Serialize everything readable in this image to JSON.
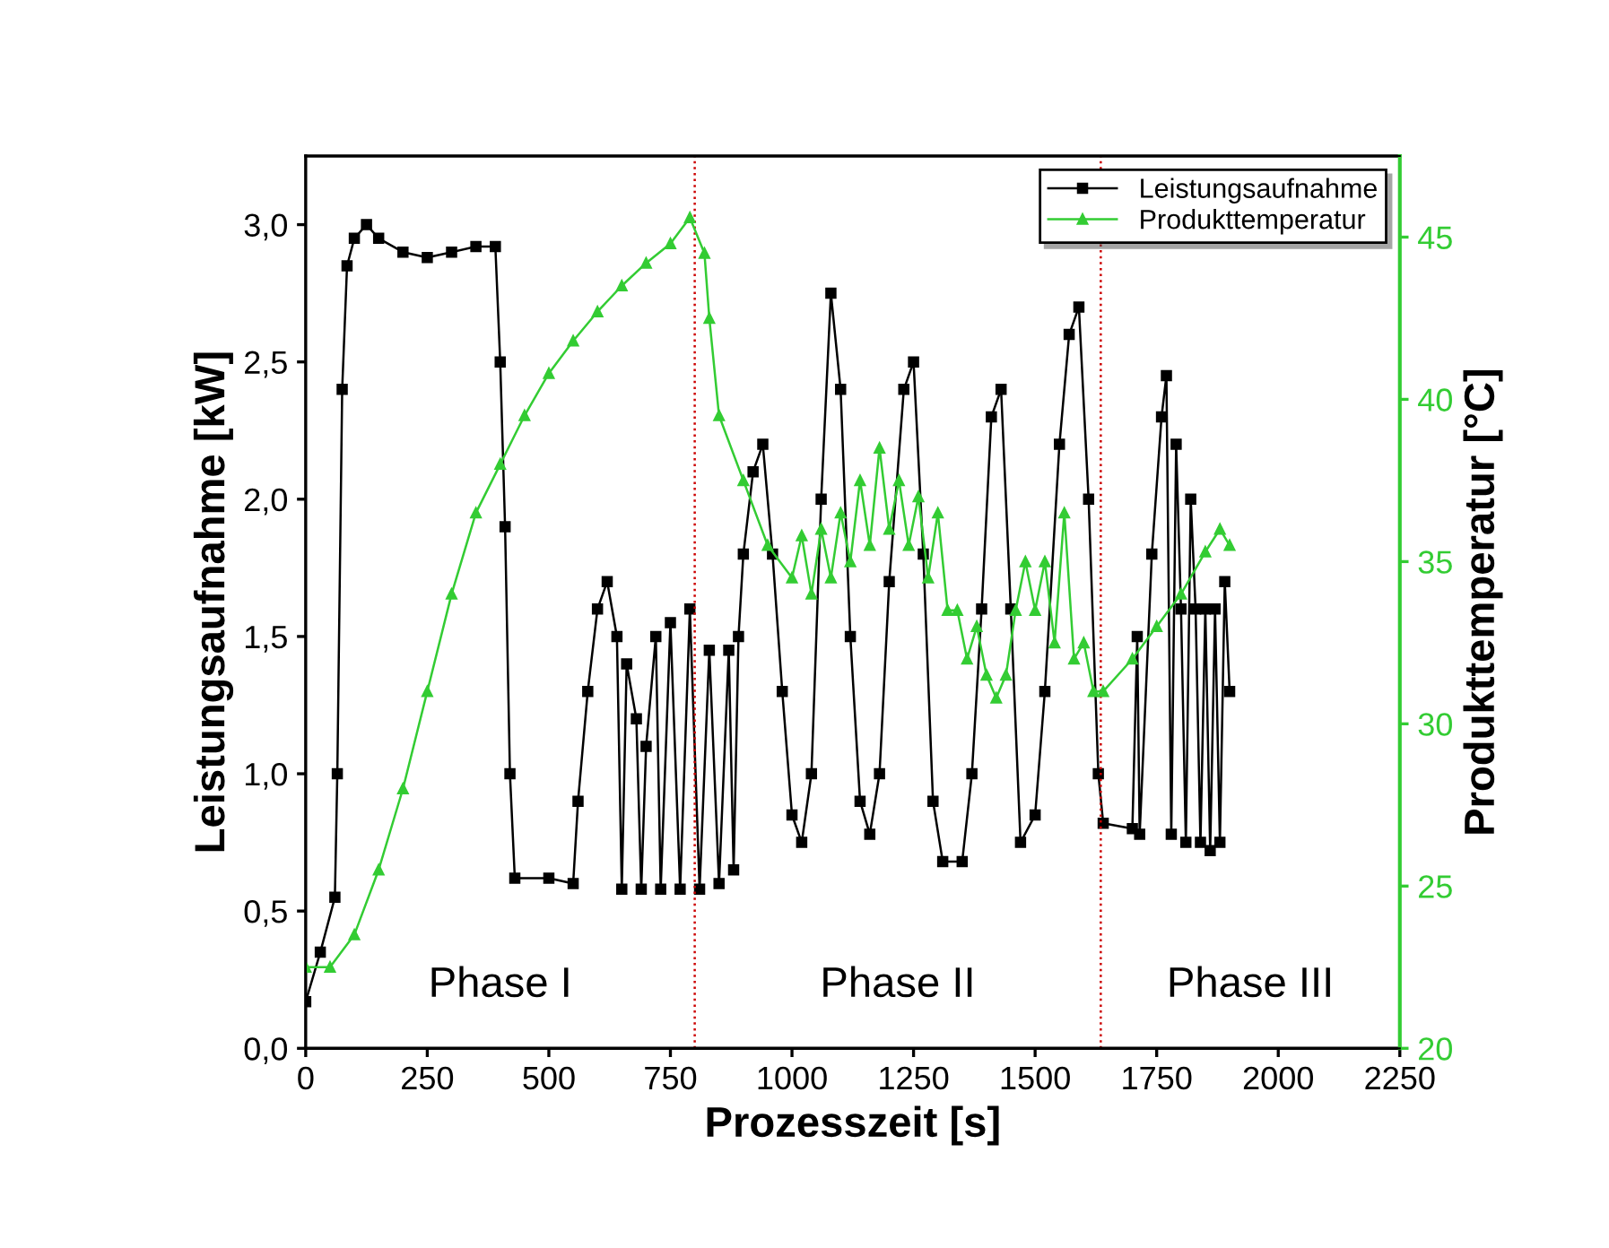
{
  "chart_data": {
    "type": "line",
    "xlabel": "Prozesszeit [s]",
    "ylabel": "Leistungsaufnahme [kW]",
    "y2label": "Produkttemperatur [°C]",
    "xlim": [
      0,
      2250
    ],
    "xticks": [
      0,
      250,
      500,
      750,
      1000,
      1250,
      1500,
      1750,
      2000,
      2250
    ],
    "ylim": [
      0,
      3.25
    ],
    "yticks": [
      {
        "value": 0,
        "label": "0,0"
      },
      {
        "value": 0.5,
        "label": "0,5"
      },
      {
        "value": 1,
        "label": "1,0"
      },
      {
        "value": 1.5,
        "label": "1,5"
      },
      {
        "value": 2,
        "label": "2,0"
      },
      {
        "value": 2.5,
        "label": "2,5"
      },
      {
        "value": 3,
        "label": "3,0"
      }
    ],
    "y2lim": [
      20,
      47.5
    ],
    "y2ticks": [
      20,
      25,
      30,
      35,
      40,
      45
    ],
    "grid": false,
    "legend": "top right",
    "ref_lines": [
      {
        "axis": "x",
        "value": 800,
        "color": "#cc0000",
        "line_style": "dotted"
      },
      {
        "axis": "x",
        "value": 1635,
        "color": "#cc0000",
        "line_style": "dotted"
      }
    ],
    "annotations": [
      "Phase I",
      "Phase II",
      "Phase III"
    ],
    "series": [
      {
        "name": "Leistungsaufnahme",
        "color": "#000000",
        "marker": "square",
        "x": [
          0,
          30,
          60,
          65,
          75,
          85,
          100,
          125,
          150,
          200,
          250,
          300,
          350,
          390,
          400,
          410,
          420,
          430,
          500,
          550,
          560,
          580,
          600,
          620,
          640,
          650,
          660,
          680,
          690,
          700,
          720,
          730,
          750,
          770,
          790,
          810,
          830,
          850,
          870,
          880,
          890,
          900,
          920,
          940,
          960,
          980,
          1000,
          1020,
          1040,
          1060,
          1080,
          1100,
          1120,
          1140,
          1160,
          1180,
          1200,
          1230,
          1250,
          1270,
          1290,
          1310,
          1350,
          1370,
          1390,
          1410,
          1430,
          1450,
          1470,
          1500,
          1520,
          1550,
          1570,
          1590,
          1610,
          1630,
          1640,
          1700,
          1710,
          1715,
          1740,
          1760,
          1770,
          1780,
          1790,
          1800,
          1810,
          1820,
          1830,
          1840,
          1850,
          1860,
          1870,
          1880,
          1890,
          1900
        ],
        "values": [
          0.17,
          0.35,
          0.55,
          1.0,
          2.4,
          2.85,
          2.95,
          3.0,
          2.95,
          2.9,
          2.88,
          2.9,
          2.92,
          2.92,
          2.5,
          1.9,
          1.0,
          0.62,
          0.62,
          0.6,
          0.9,
          1.3,
          1.6,
          1.7,
          1.5,
          0.58,
          1.4,
          1.2,
          0.58,
          1.1,
          1.5,
          0.58,
          1.55,
          0.58,
          1.6,
          0.58,
          1.45,
          0.6,
          1.45,
          0.65,
          1.5,
          1.8,
          2.1,
          2.2,
          1.8,
          1.3,
          0.85,
          0.75,
          1.0,
          2.0,
          2.75,
          2.4,
          1.5,
          0.9,
          0.78,
          1.0,
          1.7,
          2.4,
          2.5,
          1.8,
          0.9,
          0.68,
          0.68,
          1.0,
          1.6,
          2.3,
          2.4,
          1.6,
          0.75,
          0.85,
          1.3,
          2.2,
          2.6,
          2.7,
          2.0,
          1.0,
          0.82,
          0.8,
          1.5,
          0.78,
          1.8,
          2.3,
          2.45,
          0.78,
          2.2,
          1.6,
          0.75,
          2.0,
          1.6,
          0.75,
          1.6,
          0.72,
          1.6,
          0.75,
          1.7,
          1.3
        ]
      },
      {
        "name": "Produkttemperatur",
        "color": "#33cc33",
        "marker": "triangle",
        "axis": "y2",
        "x": [
          0,
          50,
          100,
          150,
          200,
          250,
          300,
          350,
          400,
          450,
          500,
          550,
          600,
          650,
          700,
          750,
          790,
          820,
          830,
          850,
          900,
          950,
          1000,
          1020,
          1040,
          1060,
          1080,
          1100,
          1120,
          1140,
          1160,
          1180,
          1200,
          1220,
          1240,
          1260,
          1280,
          1300,
          1320,
          1340,
          1360,
          1380,
          1400,
          1420,
          1440,
          1460,
          1480,
          1500,
          1520,
          1540,
          1560,
          1580,
          1600,
          1620,
          1640,
          1700,
          1750,
          1800,
          1850,
          1880,
          1900
        ],
        "values": [
          22.5,
          22.5,
          23.5,
          25.5,
          28,
          31,
          34,
          36.5,
          38,
          39.5,
          40.8,
          41.8,
          42.7,
          43.5,
          44.2,
          44.8,
          45.6,
          44.5,
          42.5,
          39.5,
          37.5,
          35.5,
          34.5,
          35.8,
          34,
          36,
          34.5,
          36.5,
          35,
          37.5,
          35.5,
          38.5,
          36,
          37.5,
          35.5,
          37,
          34.5,
          36.5,
          33.5,
          33.5,
          32,
          33,
          31.5,
          30.8,
          31.5,
          33.5,
          35,
          33.5,
          35,
          32.5,
          36.5,
          32,
          32.5,
          31,
          31,
          32,
          33,
          34,
          35.3,
          36,
          35.5
        ]
      }
    ]
  }
}
